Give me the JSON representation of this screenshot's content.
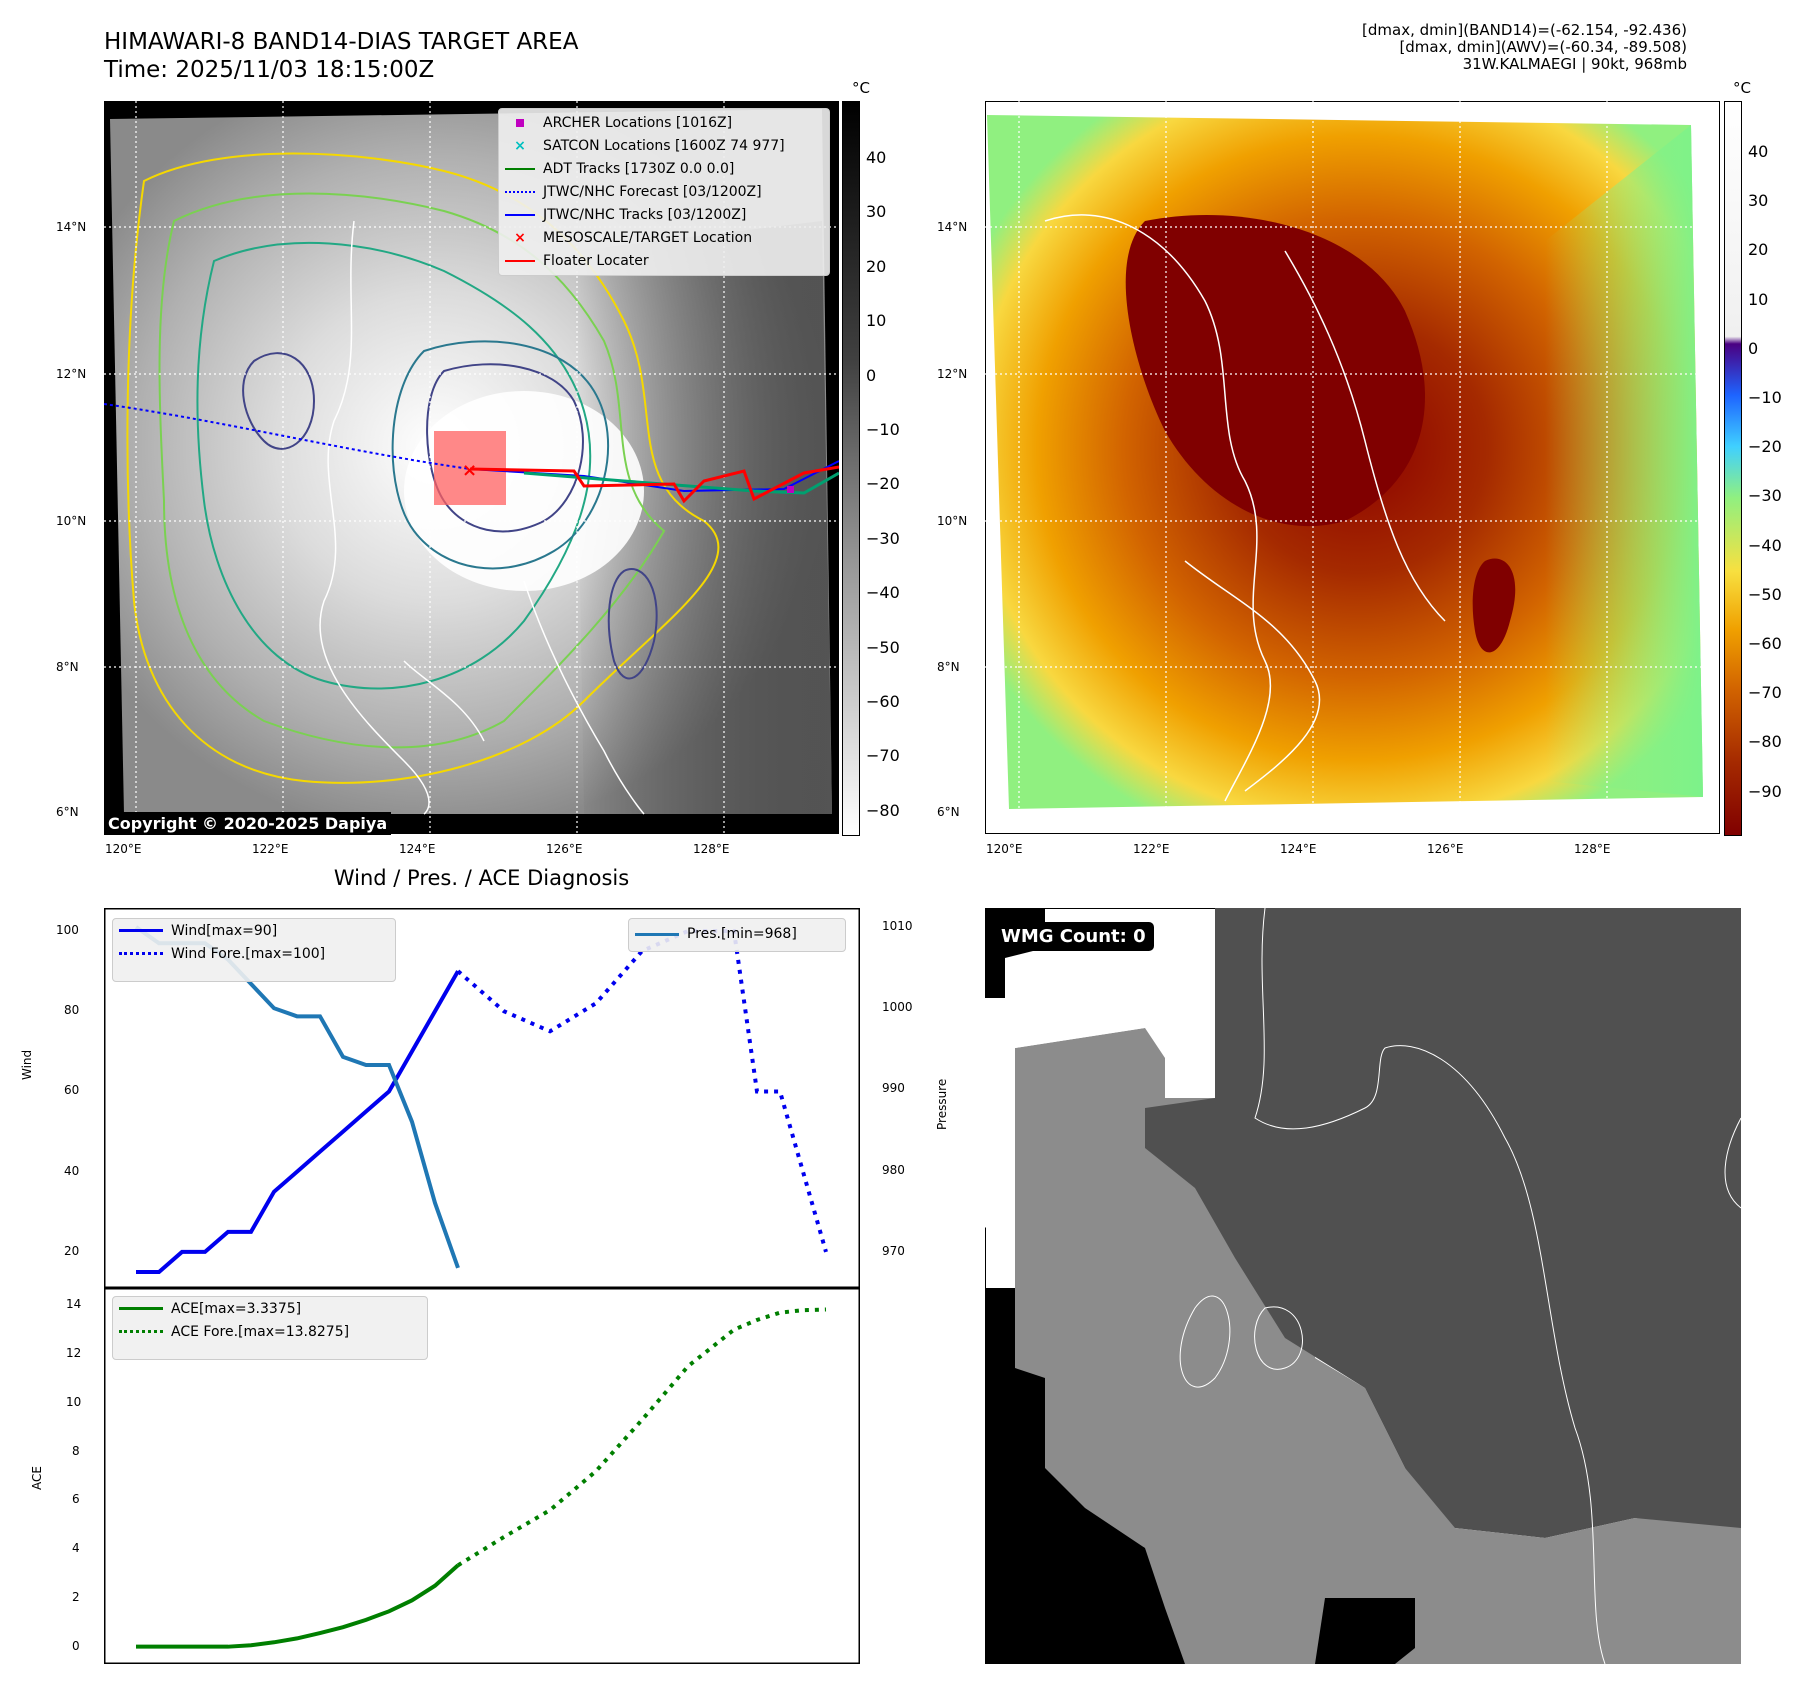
{
  "header": {
    "title_line1": "HIMAWARI-8 BAND14-DIAS TARGET AREA",
    "title_line2": "Time: 2025/11/03 18:15:00Z",
    "info_line1": "[dmax, dmin](BAND14)=(-62.154, -92.436)",
    "info_line2": "[dmax, dmin](AWV)=(-60.34, -89.508)",
    "info_line3": "31W.KALMAEGI | 90kt, 968mb"
  },
  "colors": {
    "wind": "#0000ee",
    "pressure": "#1f77b4",
    "ace": "#007f00",
    "floater": "#ff0000",
    "jtwc": "#0000ff"
  },
  "map_left": {
    "lat_labels": [
      "14°N",
      "12°N",
      "10°N",
      "8°N",
      "6°N"
    ],
    "lon_labels": [
      "120°E",
      "122°E",
      "124°E",
      "126°E",
      "128°E"
    ],
    "unit": "°C",
    "colorbar_ticks": [
      "40",
      "30",
      "20",
      "10",
      "0",
      "−10",
      "−20",
      "−30",
      "−40",
      "−50",
      "−60",
      "−70",
      "−80"
    ],
    "copyright": "Copyright © 2020-2025 Dapiya",
    "legend": [
      {
        "label": "ARCHER Locations [1016Z]",
        "marker": "square",
        "color": "#c000c0"
      },
      {
        "label": "SATCON Locations [1600Z 74 977]",
        "marker": "x",
        "color": "#00c0c0"
      },
      {
        "label": "ADT Tracks [1730Z 0.0 0.0]",
        "marker": "line",
        "color": "#007f00"
      },
      {
        "label": "JTWC/NHC Forecast [03/1200Z]",
        "marker": "dotted",
        "color": "#0000ff"
      },
      {
        "label": "JTWC/NHC Tracks [03/1200Z]",
        "marker": "line-dot",
        "color": "#0000ff"
      },
      {
        "label": "MESOSCALE/TARGET Location",
        "marker": "x",
        "color": "#ff0000"
      },
      {
        "label": "Floater Locater",
        "marker": "line",
        "color": "#ff0000"
      }
    ]
  },
  "map_right": {
    "lat_labels": [
      "14°N",
      "12°N",
      "10°N",
      "8°N",
      "6°N"
    ],
    "lon_labels": [
      "120°E",
      "122°E",
      "124°E",
      "126°E",
      "128°E"
    ],
    "unit": "°C",
    "colorbar_ticks": [
      "40",
      "30",
      "20",
      "10",
      "0",
      "−10",
      "−20",
      "−30",
      "−40",
      "−50",
      "−60",
      "−70",
      "−80",
      "−90"
    ]
  },
  "wmg": {
    "label": "WMG Count: 0"
  },
  "chart_data": [
    {
      "type": "line",
      "title": "Wind / Pres. / ACE Diagnosis",
      "ylabel": "Wind",
      "y2label": "Pressure",
      "ylim": [
        14,
        102
      ],
      "y2lim": [
        967,
        1010.5
      ],
      "yticks": [
        20,
        40,
        60,
        80,
        100
      ],
      "y2ticks": [
        970,
        980,
        990,
        1000,
        1010
      ],
      "x": [
        0,
        1,
        2,
        3,
        4,
        5,
        6,
        7,
        8,
        9,
        10,
        11,
        12,
        13,
        14,
        15,
        16,
        17,
        18,
        19,
        20,
        21,
        22,
        23,
        24,
        25,
        26,
        27,
        28,
        29,
        30
      ],
      "series": [
        {
          "name": "Wind[max=90]",
          "axis": "left",
          "style": "solid",
          "x": [
            0,
            1,
            2,
            3,
            4,
            5,
            6,
            7,
            8,
            9,
            10,
            11,
            12,
            13,
            14
          ],
          "values": [
            15,
            15,
            20,
            20,
            25,
            25,
            35,
            40,
            45,
            50,
            55,
            60,
            70,
            80,
            90
          ]
        },
        {
          "name": "Wind Fore.[max=100]",
          "axis": "left",
          "style": "dotted",
          "x": [
            14,
            16,
            18,
            20,
            22,
            24,
            26,
            27,
            28,
            29,
            30
          ],
          "values": [
            90,
            80,
            75,
            82,
            95,
            100,
            100,
            60,
            60,
            40,
            20
          ]
        },
        {
          "name": "Pres.[min=968]",
          "axis": "right",
          "style": "solid",
          "x": [
            0,
            1,
            2,
            3,
            4,
            5,
            6,
            7,
            8,
            9,
            10,
            11,
            12,
            13,
            14
          ],
          "values": [
            1010,
            1008,
            1008,
            1008,
            1006,
            1003,
            1000,
            999,
            999,
            994,
            993,
            993,
            986,
            976,
            968
          ]
        }
      ],
      "legend": [
        "Wind[max=90]",
        "Wind Fore.[max=100]",
        "Pres.[min=968]"
      ]
    },
    {
      "type": "line",
      "ylabel": "ACE",
      "ylim": [
        -0.3,
        14.3
      ],
      "yticks": [
        0,
        2,
        4,
        6,
        8,
        10,
        12,
        14
      ],
      "series": [
        {
          "name": "ACE[max=3.3375]",
          "style": "solid",
          "x": [
            0,
            1,
            2,
            3,
            4,
            5,
            6,
            7,
            8,
            9,
            10,
            11,
            12,
            13,
            14
          ],
          "values": [
            0,
            0,
            0,
            0,
            0,
            0.06,
            0.18,
            0.34,
            0.56,
            0.8,
            1.1,
            1.45,
            1.9,
            2.5,
            3.3375
          ]
        },
        {
          "name": "ACE Fore.[max=13.8275]",
          "style": "dotted",
          "x": [
            14,
            16,
            18,
            20,
            22,
            24,
            26,
            27,
            28,
            29,
            30
          ],
          "values": [
            3.3375,
            4.5,
            5.6,
            7.2,
            9.3,
            11.5,
            13.0,
            13.4,
            13.7,
            13.8,
            13.8275
          ]
        }
      ],
      "legend": [
        "ACE[max=3.3375]",
        "ACE Fore.[max=13.8275]"
      ]
    }
  ]
}
